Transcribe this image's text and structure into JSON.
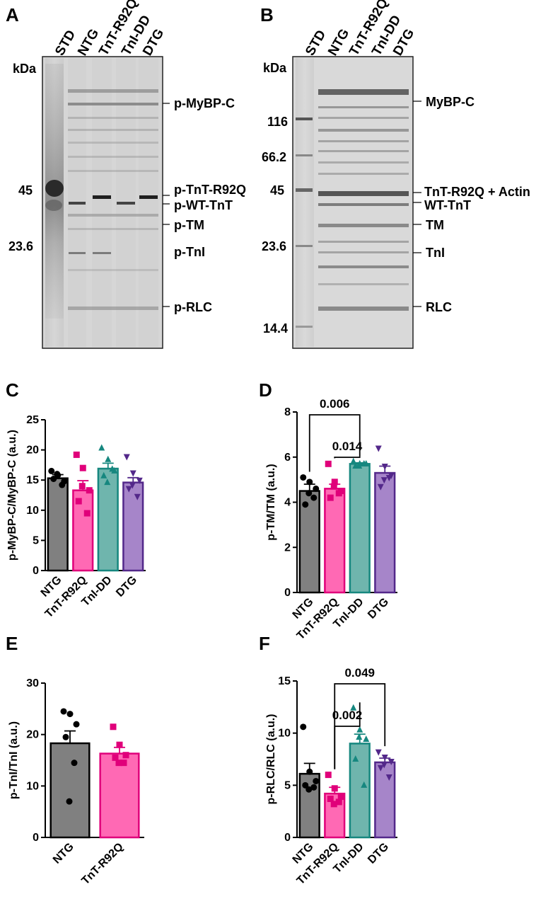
{
  "panels": {
    "A": {
      "label": "A",
      "lanes": [
        "STD",
        "NTG",
        "TnT-R92Q",
        "TnI-DD",
        "DTG"
      ],
      "kda": "kDa",
      "markers": [
        "45",
        "23.6"
      ],
      "bands": [
        "p-MyBP-C",
        "p-TnT-R92Q",
        "p-WT-TnT",
        "p-TM",
        "p-TnI",
        "p-RLC"
      ]
    },
    "B": {
      "label": "B",
      "lanes": [
        "STD",
        "NTG",
        "TnT-R92Q",
        "TnI-DD",
        "DTG"
      ],
      "kda": "kDa",
      "markers": [
        "116",
        "66.2",
        "45",
        "23.6",
        "14.4"
      ],
      "bands": [
        "MyBP-C",
        "TnT-R92Q + Actin",
        "WT-TnT",
        "TM",
        "TnI",
        "RLC"
      ]
    }
  },
  "colors": {
    "NTG": {
      "fill": "#808080",
      "edge": "#000000"
    },
    "TnT-R92Q": {
      "fill": "#ff69b4",
      "edge": "#e0007a"
    },
    "TnI-DD": {
      "fill": "#6fb5ad",
      "edge": "#16877f"
    },
    "DTG": {
      "fill": "#a685c9",
      "edge": "#53288a"
    }
  },
  "chart_data": [
    {
      "panel": "C",
      "type": "bar",
      "categories": [
        "NTG",
        "TnT-R92Q",
        "TnI-DD",
        "DTG"
      ],
      "values": [
        15.3,
        13.3,
        16.9,
        14.6
      ],
      "sem": [
        0.6,
        1.6,
        0.9,
        0.8
      ],
      "points": [
        [
          16.5,
          15.8,
          14.8,
          15.2,
          14.2,
          16.0
        ],
        [
          19.2,
          17.0,
          13.3,
          11.5,
          9.5,
          14.0
        ],
        [
          20.3,
          18.4,
          16.5,
          15.7,
          16.8,
          14.6
        ],
        [
          18.9,
          16.2,
          15.0,
          13.6,
          12.3,
          14.2
        ]
      ],
      "ylabel": "p-MyBP-C/MyBP-C (a.u.)",
      "ylim": [
        0,
        25
      ],
      "yticks": [
        "0",
        "5",
        "10",
        "15",
        "20",
        "25"
      ],
      "comparisons": []
    },
    {
      "panel": "D",
      "type": "bar",
      "categories": [
        "NTG",
        "TnT-R92Q",
        "TnI-DD",
        "DTG"
      ],
      "values": [
        4.5,
        4.6,
        5.7,
        5.3
      ],
      "sem": [
        0.3,
        0.2,
        0.05,
        0.3
      ],
      "points": [
        [
          5.1,
          4.9,
          4.6,
          3.9,
          4.2,
          4.4
        ],
        [
          5.7,
          4.9,
          4.5,
          4.2,
          4.4,
          4.7
        ],
        [
          5.8,
          5.7,
          5.7,
          5.6,
          5.7,
          5.6
        ],
        [
          6.4,
          5.6,
          5.2,
          4.7,
          5.1,
          5.0
        ]
      ],
      "ylabel": "p-TM/TM (a.u.)",
      "ylim": [
        0,
        8
      ],
      "yticks": [
        "0",
        "2",
        "4",
        "6",
        "8"
      ],
      "comparisons": [
        {
          "from": 0,
          "to": 2,
          "label": "0.006"
        },
        {
          "from": 1,
          "to": 2,
          "label": "0.014"
        }
      ]
    },
    {
      "panel": "E",
      "type": "bar",
      "categories": [
        "NTG",
        "TnT-R92Q"
      ],
      "values": [
        18.3,
        16.3
      ],
      "sem": [
        2.4,
        1.2
      ],
      "points": [
        [
          24.5,
          24.0,
          22.0,
          19.5,
          14.5,
          7.0
        ],
        [
          21.5,
          18.0,
          16.0,
          15.5,
          14.5,
          14.5
        ]
      ],
      "ylabel": "p-TnI/TnI (a.u.)",
      "ylim": [
        0,
        30
      ],
      "yticks": [
        "0",
        "10",
        "20",
        "30"
      ],
      "comparisons": []
    },
    {
      "panel": "F",
      "type": "bar",
      "categories": [
        "NTG",
        "TnT-R92Q",
        "TnI-DD",
        "DTG"
      ],
      "values": [
        6.1,
        4.2,
        9.0,
        7.2
      ],
      "sem": [
        1.0,
        0.6,
        0.9,
        0.4
      ],
      "points": [
        [
          10.6,
          6.3,
          5.4,
          5.0,
          4.8,
          4.6
        ],
        [
          6.0,
          4.7,
          3.9,
          3.7,
          3.4,
          3.2
        ],
        [
          12.4,
          10.3,
          9.4,
          7.5,
          5.0,
          9.6
        ],
        [
          8.2,
          7.7,
          7.3,
          6.7,
          5.8,
          7.0
        ]
      ],
      "ylabel": "p-RLC/RLC (a.u.)",
      "ylim": [
        0,
        15
      ],
      "yticks": [
        "0",
        "5",
        "10",
        "15"
      ],
      "comparisons": [
        {
          "from": 1,
          "to": 3,
          "label": "0.049"
        },
        {
          "from": 1,
          "to": 2,
          "label": "0.002"
        }
      ]
    }
  ],
  "chart_titles": {
    "C": "C",
    "D": "D",
    "E": "E",
    "F": "F"
  }
}
